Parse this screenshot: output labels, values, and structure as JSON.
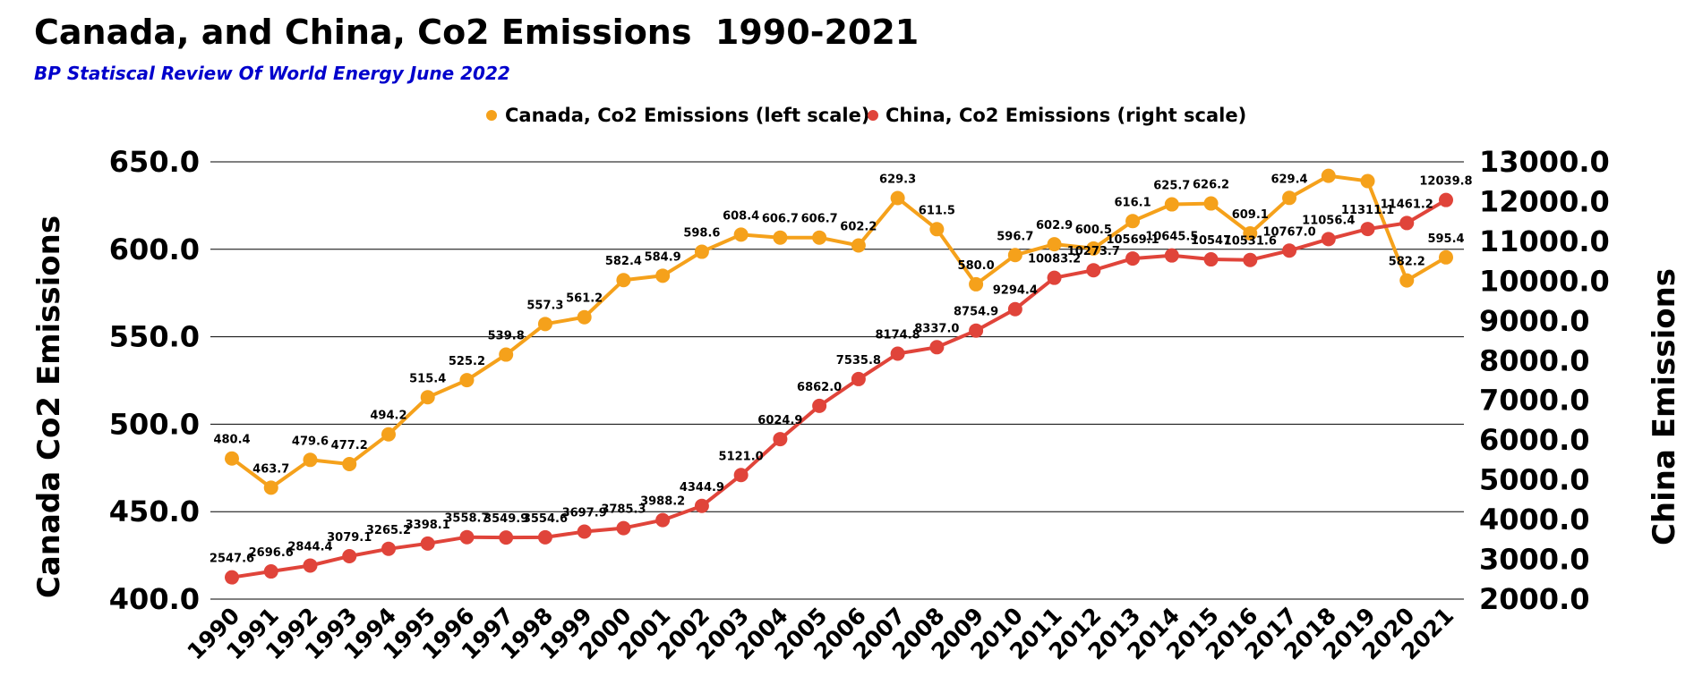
{
  "chart_data": {
    "type": "line",
    "title": "Canada, and China, Co2 Emissions  1990-2021",
    "subtitle": "BP Statiscal Review Of World Energy June 2022",
    "x": [
      "1990",
      "1991",
      "1992",
      "1993",
      "1994",
      "1995",
      "1996",
      "1997",
      "1998",
      "1999",
      "2000",
      "2001",
      "2002",
      "2003",
      "2004",
      "2005",
      "2006",
      "2007",
      "2008",
      "2009",
      "2010",
      "2011",
      "2012",
      "2013",
      "2014",
      "2015",
      "2016",
      "2017",
      "2018",
      "2019",
      "2020",
      "2021"
    ],
    "y_left_label": "Canada Co2 Emissions",
    "y_right_label": "China Emissions",
    "y_left_lim": [
      400,
      650
    ],
    "y_right_lim": [
      2000,
      13000
    ],
    "y_left_ticks": [
      "400.0",
      "450.0",
      "500.0",
      "550.0",
      "600.0",
      "650.0"
    ],
    "y_right_ticks": [
      "2000.0",
      "3000.0",
      "4000.0",
      "5000.0",
      "6000.0",
      "7000.0",
      "8000.0",
      "9000.0",
      "10000.0",
      "11000.0",
      "12000.0",
      "13000.0"
    ],
    "grid": true,
    "legend_position": "top-center",
    "series": [
      {
        "name": "Canada, Co2 Emissions (left scale)",
        "axis": "left",
        "color": "#f5a11b",
        "values": [
          480.4,
          463.7,
          479.6,
          477.2,
          494.2,
          515.4,
          525.2,
          539.8,
          557.3,
          561.2,
          582.4,
          584.9,
          598.6,
          608.4,
          606.7,
          606.7,
          602.2,
          629.3,
          611.5,
          580.0,
          596.7,
          602.9,
          600.5,
          616.1,
          625.7,
          626.2,
          609.1,
          629.4,
          642.0,
          639.0,
          582.2,
          595.4
        ],
        "labels": [
          "480.4",
          "463.7",
          "479.6",
          "477.2",
          "494.2",
          "515.4",
          "525.2",
          "539.8",
          "557.3",
          "561.2",
          "582.4",
          "584.9",
          "598.6",
          "608.4",
          "606.7",
          "606.7",
          "602.2",
          "629.3",
          "611.5",
          "580.0",
          "596.7",
          "602.9",
          "600.5",
          "616.1",
          "625.7",
          "626.2",
          "609.1",
          "629.4",
          "",
          "",
          "582.2",
          "595.4"
        ]
      },
      {
        "name": "China, Co2 Emissions (right scale)",
        "axis": "right",
        "color": "#e0443a",
        "values": [
          2547.6,
          2696.6,
          2844.4,
          3079.1,
          3265.2,
          3398.1,
          3558.7,
          3549.9,
          3554.6,
          3697.9,
          3785.3,
          3988.2,
          4344.9,
          5121.0,
          6024.9,
          6862.0,
          7535.8,
          8174.8,
          8337.0,
          8754.9,
          9294.4,
          10083.2,
          10273.7,
          10569.1,
          10645.5,
          10547.0,
          10531.6,
          10767.0,
          11056.4,
          11311.1,
          11461.2,
          12039.8
        ],
        "labels": [
          "2547.6",
          "2696.6",
          "2844.4",
          "3079.1",
          "3265.2",
          "3398.1",
          "3558.7",
          "3549.9",
          "3554.6",
          "3697.9",
          "3785.3",
          "3988.2",
          "4344.9",
          "5121.0",
          "6024.9",
          "6862.0",
          "7535.8",
          "8174.8",
          "8337.0",
          "8754.9",
          "9294.4",
          "10083.2",
          "10273.7",
          "10569.1",
          "10645.5",
          "10547",
          "10531.6",
          "10767.0",
          "11056.4",
          "11311.1",
          "11461.2",
          "12039.8"
        ]
      }
    ]
  }
}
